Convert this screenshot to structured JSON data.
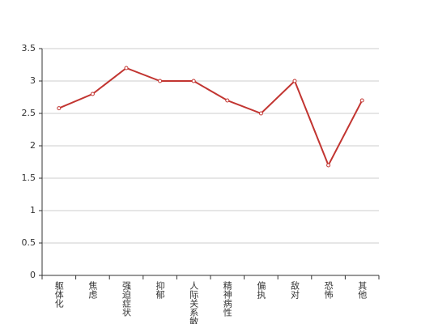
{
  "chart_data": {
    "type": "line",
    "categories": [
      "躯体化",
      "焦虑",
      "强迫症状",
      "抑郁",
      "人际关系敏感",
      "精神病性",
      "偏执",
      "敌对",
      "恐怖",
      "其他"
    ],
    "series": [
      {
        "color": "#c23531",
        "values": [
          2.58,
          2.8,
          3.2,
          3.0,
          3.0,
          2.7,
          2.5,
          3.0,
          1.7,
          2.7
        ]
      }
    ],
    "ylim": [
      0,
      3.5
    ],
    "yticks": [
      0,
      0.5,
      1,
      1.5,
      2,
      2.5,
      3,
      3.5
    ],
    "grid": true
  }
}
